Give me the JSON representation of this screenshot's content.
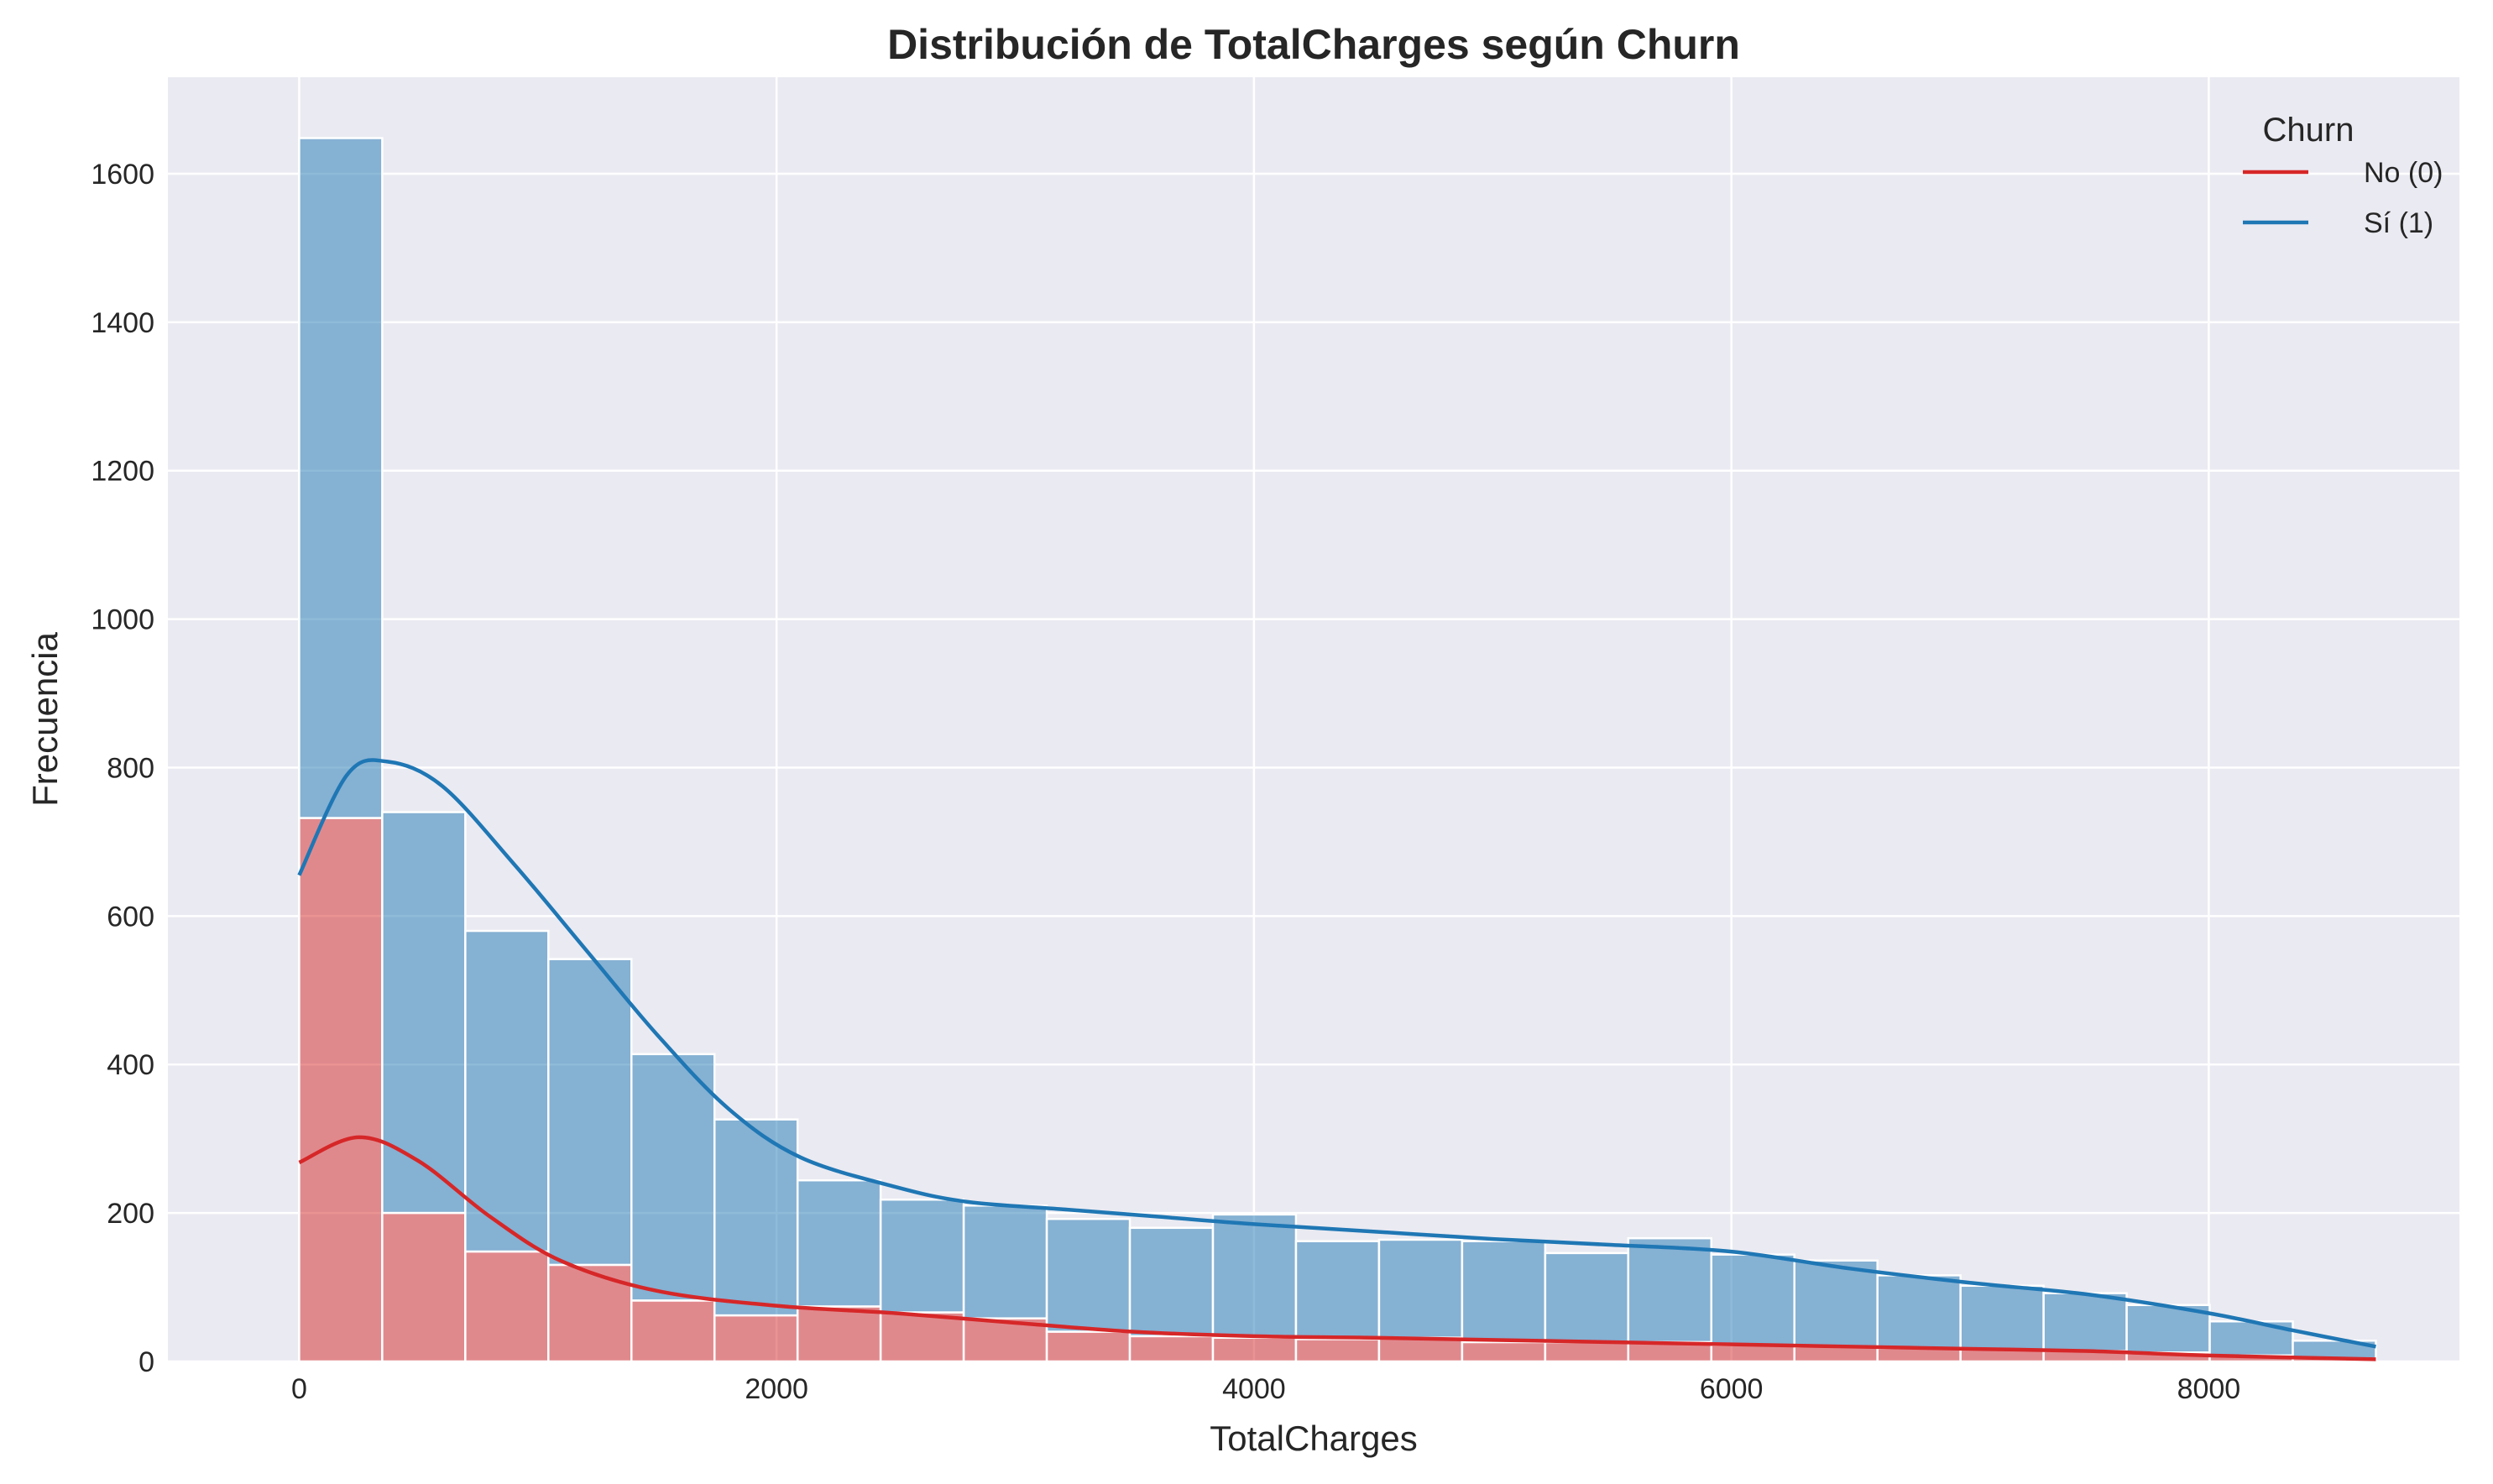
{
  "chart_data": {
    "type": "bar",
    "title": "Distribución de TotalCharges según Churn",
    "xlabel": "TotalCharges",
    "ylabel": "Frecuencia",
    "xlim": [
      -550,
      9050
    ],
    "ylim": [
      0,
      1730
    ],
    "xticks": [
      0,
      2000,
      4000,
      6000,
      8000
    ],
    "yticks": [
      0,
      200,
      400,
      600,
      800,
      1000,
      1200,
      1400,
      1600
    ],
    "grid": true,
    "stacked": true,
    "bin_edges": [
      0,
      348,
      696,
      1044,
      1392,
      1740,
      2088,
      2436,
      2784,
      3132,
      3480,
      3828,
      4176,
      4524,
      4872,
      5220,
      5568,
      5916,
      6264,
      6612,
      6960,
      7308,
      7656,
      8004,
      8352,
      8700
    ],
    "legend": {
      "title": "Churn",
      "position": "top-right"
    },
    "series": [
      {
        "name": "No (0)",
        "color": "#d62728",
        "values": [
          732,
          200,
          148,
          130,
          82,
          62,
          74,
          66,
          58,
          40,
          34,
          32,
          30,
          32,
          26,
          26,
          26,
          22,
          20,
          18,
          16,
          14,
          12,
          8,
          4
        ],
        "kde": [
          [
            0,
            268
          ],
          [
            250,
            302
          ],
          [
            500,
            270
          ],
          [
            800,
            195
          ],
          [
            1100,
            135
          ],
          [
            1500,
            95
          ],
          [
            2000,
            75
          ],
          [
            2500,
            65
          ],
          [
            3000,
            52
          ],
          [
            3500,
            40
          ],
          [
            4000,
            34
          ],
          [
            4500,
            32
          ],
          [
            5000,
            29
          ],
          [
            5500,
            26
          ],
          [
            6000,
            23
          ],
          [
            6500,
            20
          ],
          [
            7000,
            17
          ],
          [
            7500,
            14
          ],
          [
            8000,
            8
          ],
          [
            8700,
            3
          ]
        ]
      },
      {
        "name": "Sí (1)",
        "color": "#1f77b4",
        "values": [
          916,
          540,
          432,
          412,
          332,
          264,
          170,
          152,
          152,
          152,
          146,
          166,
          132,
          132,
          136,
          120,
          140,
          122,
          116,
          98,
          86,
          78,
          64,
          46,
          24
        ],
        "kde": [
          [
            0,
            655
          ],
          [
            200,
            790
          ],
          [
            370,
            808
          ],
          [
            600,
            775
          ],
          [
            900,
            670
          ],
          [
            1200,
            555
          ],
          [
            1500,
            440
          ],
          [
            1800,
            340
          ],
          [
            2100,
            275
          ],
          [
            2500,
            235
          ],
          [
            2800,
            215
          ],
          [
            3200,
            205
          ],
          [
            3600,
            195
          ],
          [
            4000,
            185
          ],
          [
            4500,
            175
          ],
          [
            5000,
            165
          ],
          [
            5500,
            157
          ],
          [
            6000,
            148
          ],
          [
            6500,
            125
          ],
          [
            7000,
            106
          ],
          [
            7500,
            90
          ],
          [
            8000,
            65
          ],
          [
            8350,
            42
          ],
          [
            8700,
            20
          ]
        ]
      }
    ]
  }
}
